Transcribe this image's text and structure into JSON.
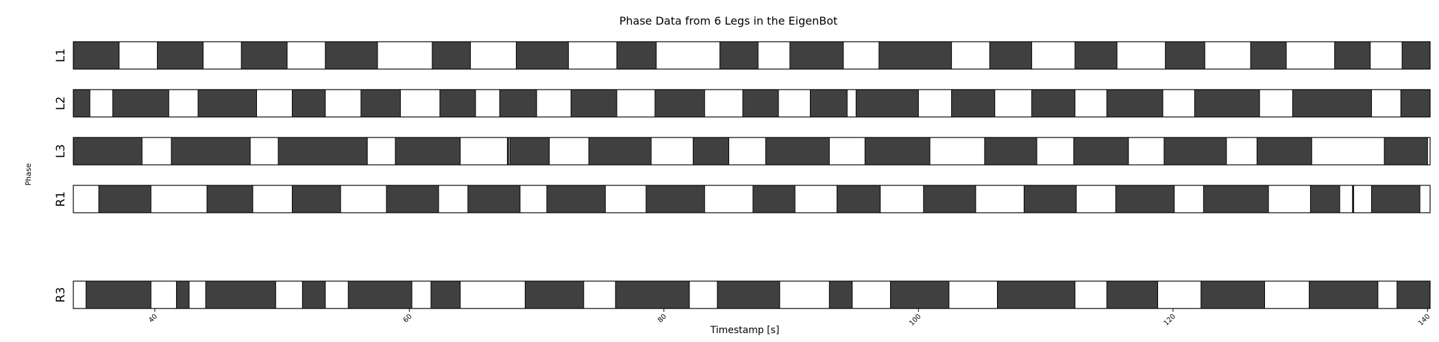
{
  "chart_data": {
    "type": "gantt",
    "title": "Phase Data from 6 Legs in the EigenBot",
    "xlabel": "Timestamp [s]",
    "ylabel": "Phase",
    "xlim": [
      33.6,
      140.2
    ],
    "xticks": [
      40,
      60,
      80,
      100,
      120,
      140
    ],
    "colors": {
      "stance": "#404040",
      "swing": "#ffffff",
      "edge": "#000000"
    },
    "rows": [
      {
        "name": "L1",
        "stance": [
          [
            33.6,
            37.2
          ],
          [
            40.2,
            43.8
          ],
          [
            46.8,
            50.4
          ],
          [
            53.4,
            57.5
          ],
          [
            61.8,
            64.8
          ],
          [
            68.4,
            72.5
          ],
          [
            76.3,
            79.4
          ],
          [
            84.4,
            87.4
          ],
          [
            89.9,
            94.1
          ],
          [
            96.9,
            102.6
          ],
          [
            105.6,
            108.9
          ],
          [
            112.3,
            115.6
          ],
          [
            119.4,
            122.5
          ],
          [
            126.1,
            128.9
          ],
          [
            132.7,
            135.5
          ],
          [
            138.0,
            140.2
          ]
        ]
      },
      {
        "name": "L2",
        "stance": [
          [
            33.6,
            34.9
          ],
          [
            36.7,
            41.1
          ],
          [
            43.4,
            48.0
          ],
          [
            50.8,
            53.4
          ],
          [
            56.2,
            59.3
          ],
          [
            62.4,
            65.2
          ],
          [
            67.1,
            70.0
          ],
          [
            72.7,
            76.3
          ],
          [
            79.3,
            83.2
          ],
          [
            86.2,
            89.0
          ],
          [
            91.5,
            94.4
          ],
          [
            95.1,
            100.0
          ],
          [
            102.6,
            106.0
          ],
          [
            108.9,
            112.3
          ],
          [
            114.8,
            119.2
          ],
          [
            121.7,
            126.8
          ],
          [
            129.4,
            135.6
          ],
          [
            137.9,
            140.2
          ]
        ]
      },
      {
        "name": "L3",
        "stance": [
          [
            33.6,
            39.0
          ],
          [
            41.3,
            47.5
          ],
          [
            49.7,
            56.7
          ],
          [
            58.9,
            64.0
          ],
          [
            67.7,
            67.8
          ],
          [
            67.9,
            71.0
          ],
          [
            74.1,
            79.0
          ],
          [
            82.3,
            85.1
          ],
          [
            88.0,
            93.0
          ],
          [
            95.8,
            100.9
          ],
          [
            105.2,
            109.3
          ],
          [
            112.2,
            116.5
          ],
          [
            119.3,
            124.2
          ],
          [
            126.6,
            130.9
          ],
          [
            136.6,
            140.0
          ]
        ]
      },
      {
        "name": "R1",
        "stance": [
          [
            35.6,
            39.7
          ],
          [
            44.1,
            47.7
          ],
          [
            50.8,
            54.6
          ],
          [
            58.2,
            62.3
          ],
          [
            64.6,
            68.7
          ],
          [
            70.8,
            75.4
          ],
          [
            78.6,
            83.2
          ],
          [
            87.0,
            90.3
          ],
          [
            93.6,
            97.0
          ],
          [
            100.4,
            104.5
          ],
          [
            108.3,
            112.4
          ],
          [
            115.5,
            120.1
          ],
          [
            122.4,
            127.5
          ],
          [
            130.8,
            133.1
          ],
          [
            134.1,
            134.2
          ],
          [
            135.6,
            139.4
          ]
        ]
      },
      {
        "name": "R3",
        "stance": [
          [
            34.6,
            39.7
          ],
          [
            41.7,
            42.7
          ],
          [
            44.0,
            49.5
          ],
          [
            51.6,
            53.4
          ],
          [
            55.2,
            60.2
          ],
          [
            61.7,
            64.0
          ],
          [
            69.1,
            73.7
          ],
          [
            76.2,
            82.0
          ],
          [
            84.2,
            89.1
          ],
          [
            93.0,
            94.8
          ],
          [
            97.8,
            102.4
          ],
          [
            106.2,
            112.3
          ],
          [
            114.8,
            118.8
          ],
          [
            122.2,
            127.2
          ],
          [
            130.7,
            136.1
          ],
          [
            137.6,
            140.2
          ]
        ]
      }
    ]
  }
}
